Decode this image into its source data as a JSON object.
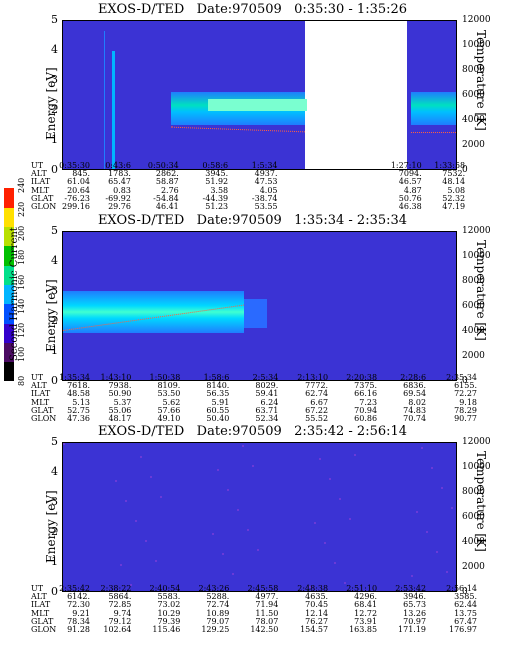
{
  "chart_data": [
    {
      "type": "heatmap",
      "title": "EXOS-D/TED   Date:970509   0:35:30 - 1:35:26",
      "ylabel": "Energy [eV]",
      "y2label": "Temperature [K]",
      "ylim": [
        0,
        5
      ],
      "y2lim": [
        0,
        12000
      ],
      "y_ticks": [
        "0",
        "1",
        "2",
        "3",
        "4",
        "5"
      ],
      "y2_ticks": [
        "0",
        "2000",
        "4000",
        "6000",
        "8000",
        "10000",
        "12000"
      ],
      "orbit_labels": [
        "UT",
        "ALT",
        "ILAT",
        "MLT",
        "GLAT",
        "GLON"
      ],
      "orbit_columns": [
        [
          "0:35:30",
          "845.",
          "61.04",
          "20.64",
          "-76.23",
          "299.16"
        ],
        [
          "0:43:6",
          "1783.",
          "65.47",
          "0.83",
          "-69.92",
          "29.76"
        ],
        [
          "0:50:34",
          "2862.",
          "58.87",
          "2.76",
          "-54.84",
          "46.41"
        ],
        [
          "0:58:6",
          "3945.",
          "51.92",
          "3.58",
          "-44.39",
          "51.23"
        ],
        [
          "1:5:34",
          "4937.",
          "47.53",
          "4.05",
          "-38.74",
          "53.55"
        ],
        [
          "1:27:10",
          "7094.",
          "46.57",
          "4.87",
          "50.76",
          "46.38"
        ],
        [
          "1:33:58",
          "7532.",
          "48.14",
          "5.08",
          "52.32",
          "47.19"
        ]
      ],
      "orbit_columns_x_fraction": [
        0.0,
        0.124,
        0.245,
        0.37,
        0.495,
        0.86,
        0.97
      ]
    },
    {
      "type": "heatmap",
      "title": "EXOS-D/TED   Date:970509   1:35:34 - 2:35:34",
      "ylabel": "Energy [eV]",
      "y2label": "Temperature [K]",
      "ylim": [
        0,
        5
      ],
      "y2lim": [
        0,
        12000
      ],
      "y_ticks": [
        "0",
        "1",
        "2",
        "3",
        "4",
        "5"
      ],
      "y2_ticks": [
        "0",
        "2000",
        "4000",
        "6000",
        "8000",
        "10000",
        "12000"
      ],
      "orbit_labels": [
        "UT",
        "ALT",
        "ILAT",
        "MLT",
        "GLAT",
        "GLON"
      ],
      "orbit_columns": [
        [
          "1:35:34",
          "7618.",
          "48.58",
          "5.13",
          "52.75",
          "47.36"
        ],
        [
          "1:43:10",
          "7938.",
          "50.90",
          "5.37",
          "55.06",
          "48.17"
        ],
        [
          "1:50:38",
          "8109.",
          "53.50",
          "5.62",
          "57.66",
          "49.10"
        ],
        [
          "1:58:6",
          "8140.",
          "56.35",
          "5.91",
          "60.55",
          "50.40"
        ],
        [
          "2:5:34",
          "8029.",
          "59.41",
          "6.24",
          "63.71",
          "52.34"
        ],
        [
          "2:13:10",
          "7772.",
          "62.74",
          "6.67",
          "67.22",
          "55.52"
        ],
        [
          "2:20:38",
          "7375.",
          "66.16",
          "7.23",
          "70.94",
          "60.86"
        ],
        [
          "2:28:6",
          "6836.",
          "69.54",
          "8.02",
          "74.83",
          "70.74"
        ],
        [
          "2:35:34",
          "6155.",
          "72.27",
          "9.18",
          "78.29",
          "90.77"
        ]
      ],
      "orbit_columns_x_fraction": [
        0.0,
        0.125,
        0.249,
        0.373,
        0.497,
        0.623,
        0.747,
        0.871,
        1.0
      ],
      "colorbar": {
        "label": "Second Harmonic Current",
        "ticks": [
          "80",
          "100",
          "120",
          "140",
          "160",
          "180",
          "200",
          "220",
          "240"
        ],
        "colors": [
          "#000000",
          "#4b0b63",
          "#3300cc",
          "#0050ff",
          "#00b5ff",
          "#00e08a",
          "#00c000",
          "#b8e000",
          "#ffe000",
          "#ff2000"
        ]
      }
    },
    {
      "type": "heatmap",
      "title": "EXOS-D/TED   Date:970509   2:35:42 - 2:56:14",
      "ylabel": "Energy [eV]",
      "y2label": "Temperature [K]",
      "ylim": [
        0,
        5
      ],
      "y2lim": [
        0,
        12000
      ],
      "y_ticks": [
        "0",
        "1",
        "2",
        "3",
        "4",
        "5"
      ],
      "y2_ticks": [
        "0",
        "2000",
        "4000",
        "6000",
        "8000",
        "10000",
        "12000"
      ],
      "orbit_labels": [
        "UT",
        "ALT",
        "ILAT",
        "MLT",
        "GLAT",
        "GLON"
      ],
      "orbit_columns": [
        [
          "2:35:42",
          "6142.",
          "72.30",
          "9.21",
          "78.34",
          "91.28"
        ],
        [
          "2:38:22",
          "5864.",
          "72.85",
          "9.74",
          "79.12",
          "102.64"
        ],
        [
          "2:40:54",
          "5583.",
          "73.02",
          "10.29",
          "79.39",
          "115.46"
        ],
        [
          "2:43:26",
          "5288.",
          "72.74",
          "10.89",
          "79.07",
          "129.25"
        ],
        [
          "2:45:58",
          "4977.",
          "71.94",
          "11.50",
          "78.07",
          "142.50"
        ],
        [
          "2:48:38",
          "4635.",
          "70.45",
          "12.14",
          "76.27",
          "154.57"
        ],
        [
          "2:51:10",
          "4296.",
          "68.41",
          "12.72",
          "73.91",
          "163.85"
        ],
        [
          "2:53:42",
          "3946.",
          "65.73",
          "13.26",
          "70.97",
          "171.19"
        ],
        [
          "2:56:14",
          "3585.",
          "62.44",
          "13.75",
          "67.47",
          "176.97"
        ]
      ],
      "orbit_columns_x_fraction": [
        0.0,
        0.125,
        0.249,
        0.373,
        0.497,
        0.623,
        0.747,
        0.871,
        1.0
      ]
    }
  ]
}
